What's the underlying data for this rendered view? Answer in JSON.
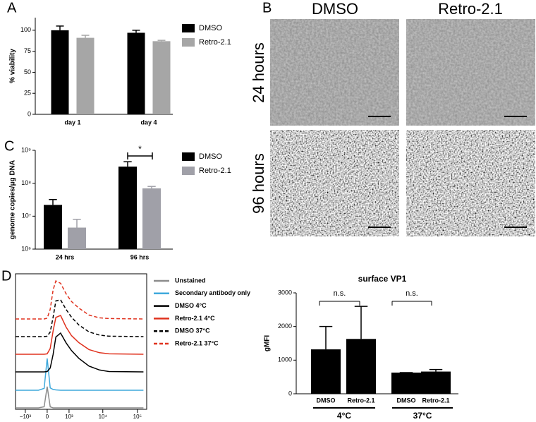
{
  "panel_labels": [
    "A",
    "B",
    "C",
    "D"
  ],
  "micrographs": {
    "columns": [
      "DMSO",
      "Retro-2.1"
    ],
    "rows": [
      "24 hours",
      "96 hours"
    ]
  },
  "chart_data": [
    {
      "type": "bar",
      "ylabel": "% viability",
      "categories": [
        "day 1",
        "day 4"
      ],
      "series": [
        {
          "name": "DMSO",
          "color": "#000000",
          "values": [
            100,
            97
          ],
          "errors": [
            5,
            3
          ]
        },
        {
          "name": "Retro-2.1",
          "color": "#a6a6a6",
          "values": [
            91,
            87
          ],
          "errors": [
            3,
            1
          ]
        }
      ],
      "ylim": [
        0,
        115
      ],
      "yticks": [
        0,
        25,
        50,
        75,
        100
      ]
    },
    {
      "type": "bar",
      "log": true,
      "ylabel": "genome copies/μg DNA",
      "categories": [
        "24 hrs",
        "96 hrs"
      ],
      "series": [
        {
          "name": "DMSO",
          "color": "#000000",
          "values": [
            22000000,
            320000000
          ],
          "errors": [
            10000000,
            130000000
          ]
        },
        {
          "name": "Retro-2.1",
          "color": "#a0a0a8",
          "values": [
            4500000,
            70000000
          ],
          "errors": [
            3500000,
            10000000
          ]
        }
      ],
      "annotation": "*",
      "ylim": [
        1000000,
        1000000000
      ],
      "yticks": [
        {
          "value": 1000000,
          "label": "10⁶"
        },
        {
          "value": 10000000,
          "label": "10⁷"
        },
        {
          "value": 100000000,
          "label": "10⁸"
        },
        {
          "value": 1000000000,
          "label": "10⁹"
        }
      ]
    },
    {
      "type": "histogram-overlay",
      "x": [
        -2000,
        -300,
        -100,
        0,
        100,
        200,
        300,
        500,
        800,
        1200,
        2000,
        4000,
        8000,
        15000,
        150000
      ],
      "series": [
        {
          "name": "Unstained",
          "color": "#8c8c8c",
          "dash": false,
          "values": [
            0,
            0,
            3,
            55,
            3,
            0,
            0,
            0,
            0,
            0,
            0,
            0,
            0,
            0,
            0
          ]
        },
        {
          "name": "Secondary antibody only",
          "color": "#3fa9dc",
          "dash": false,
          "values": [
            0,
            0,
            5,
            82,
            6,
            2,
            1,
            0,
            0,
            0,
            0,
            0,
            0,
            0,
            0
          ]
        },
        {
          "name": "DMSO 4°C",
          "color": "#000000",
          "dash": false,
          "values": [
            0,
            0,
            0,
            1,
            10,
            45,
            90,
            100,
            75,
            55,
            35,
            15,
            5,
            1,
            0
          ]
        },
        {
          "name": "Retro-2.1 4°C",
          "color": "#e0321e",
          "dash": false,
          "values": [
            0,
            0,
            0,
            1,
            15,
            60,
            95,
            100,
            70,
            48,
            30,
            12,
            4,
            1,
            0
          ]
        },
        {
          "name": "DMSO 37°C",
          "color": "#000000",
          "dash": true,
          "values": [
            0,
            0,
            0,
            1,
            12,
            50,
            92,
            95,
            70,
            50,
            30,
            12,
            4,
            1,
            0
          ]
        },
        {
          "name": "Retro-2.1 37°C",
          "color": "#e0321e",
          "dash": true,
          "values": [
            0,
            0,
            0,
            2,
            25,
            75,
            98,
            92,
            65,
            45,
            28,
            10,
            3,
            1,
            0
          ]
        }
      ],
      "xlim": [
        -2000,
        186000
      ],
      "xticks": [
        {
          "value": -1000,
          "label": "−10³"
        },
        0,
        {
          "value": 1000,
          "label": "10³"
        },
        {
          "value": 10000,
          "label": "10⁴"
        },
        {
          "value": 100000,
          "label": "10⁵"
        }
      ]
    },
    {
      "type": "bar",
      "title": "surface VP1",
      "ylabel": "gMFI",
      "categories": [
        "DMSO",
        "Retro-2.1",
        "DMSO",
        "Retro-2.1"
      ],
      "groups": [
        "4°C",
        "37°C"
      ],
      "values": [
        1320,
        1630,
        630,
        660
      ],
      "errors": [
        680,
        970,
        0,
        60
      ],
      "color": "#000000",
      "annotations": [
        "n.s.",
        "n.s."
      ],
      "ylim": [
        0,
        3000
      ],
      "yticks": [
        0,
        1000,
        2000,
        3000
      ]
    }
  ]
}
